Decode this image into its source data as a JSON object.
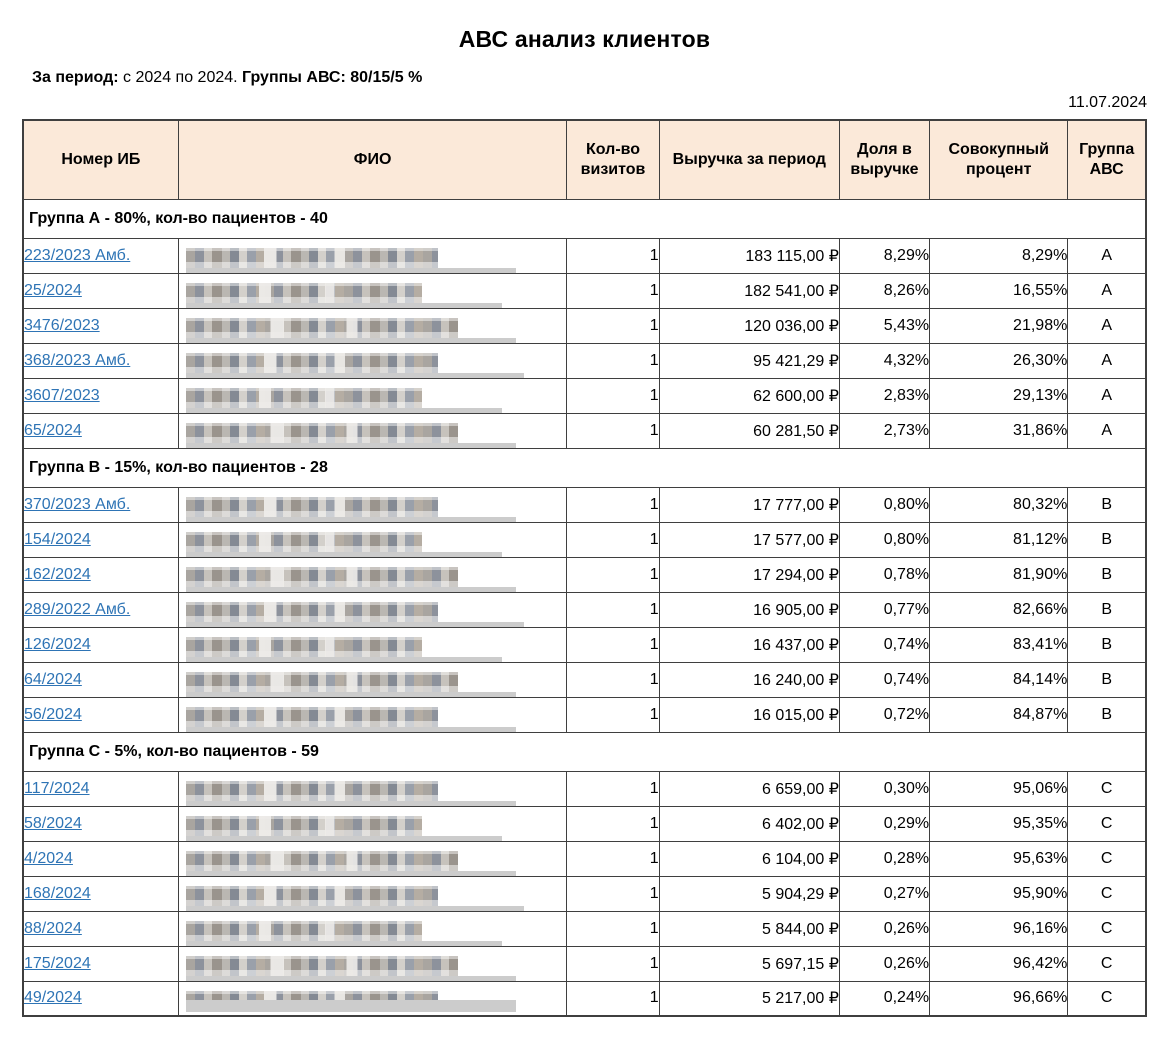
{
  "report": {
    "title": "АВС анализ клиентов",
    "period_label": "За период:",
    "period_value": "с 2024 по 2024.",
    "groups_label": "Группы АВС:",
    "groups_value": "80/15/5 %",
    "date": "11.07.2024"
  },
  "colors": {
    "header_background": "#fbe9d9",
    "table_border": "#3f3f3f",
    "link_blue": "#2e74b5",
    "redaction_bar": "#cccccc"
  },
  "table": {
    "columns": [
      "Номер ИБ",
      "ФИО",
      "Кол-во визитов",
      "Выручка за период",
      "Доля в выручке",
      "Совокупный процент",
      "Группа АВС"
    ],
    "groups": [
      {
        "header": "Группа А - 80%, кол-во пациентов - 40",
        "rows": [
          {
            "number": "223/2023 Амб.",
            "visits": "1",
            "revenue": "183 115,00 ₽",
            "share": "8,29%",
            "cumulative": "8,29%",
            "group": "A"
          },
          {
            "number": "25/2024",
            "visits": "1",
            "revenue": "182 541,00 ₽",
            "share": "8,26%",
            "cumulative": "16,55%",
            "group": "A"
          },
          {
            "number": "3476/2023",
            "visits": "1",
            "revenue": "120 036,00 ₽",
            "share": "5,43%",
            "cumulative": "21,98%",
            "group": "A"
          },
          {
            "number": "368/2023 Амб.",
            "visits": "1",
            "revenue": "95 421,29 ₽",
            "share": "4,32%",
            "cumulative": "26,30%",
            "group": "A"
          },
          {
            "number": "3607/2023",
            "visits": "1",
            "revenue": "62 600,00 ₽",
            "share": "2,83%",
            "cumulative": "29,13%",
            "group": "A"
          },
          {
            "number": "65/2024",
            "visits": "1",
            "revenue": "60 281,50 ₽",
            "share": "2,73%",
            "cumulative": "31,86%",
            "group": "A"
          }
        ]
      },
      {
        "header": "Группа В - 15%, кол-во пациентов - 28",
        "rows": [
          {
            "number": "370/2023 Амб.",
            "visits": "1",
            "revenue": "17 777,00 ₽",
            "share": "0,80%",
            "cumulative": "80,32%",
            "group": "B"
          },
          {
            "number": "154/2024",
            "visits": "1",
            "revenue": "17 577,00 ₽",
            "share": "0,80%",
            "cumulative": "81,12%",
            "group": "B"
          },
          {
            "number": "162/2024",
            "visits": "1",
            "revenue": "17 294,00 ₽",
            "share": "0,78%",
            "cumulative": "81,90%",
            "group": "B"
          },
          {
            "number": "289/2022 Амб.",
            "visits": "1",
            "revenue": "16 905,00 ₽",
            "share": "0,77%",
            "cumulative": "82,66%",
            "group": "B"
          },
          {
            "number": "126/2024",
            "visits": "1",
            "revenue": "16 437,00 ₽",
            "share": "0,74%",
            "cumulative": "83,41%",
            "group": "B"
          },
          {
            "number": "64/2024",
            "visits": "1",
            "revenue": "16 240,00 ₽",
            "share": "0,74%",
            "cumulative": "84,14%",
            "group": "B"
          },
          {
            "number": "56/2024",
            "visits": "1",
            "revenue": "16 015,00 ₽",
            "share": "0,72%",
            "cumulative": "84,87%",
            "group": "B"
          }
        ]
      },
      {
        "header": "Группа С - 5%, кол-во пациентов - 59",
        "rows": [
          {
            "number": "117/2024",
            "visits": "1",
            "revenue": "6 659,00 ₽",
            "share": "0,30%",
            "cumulative": "95,06%",
            "group": "C"
          },
          {
            "number": "58/2024",
            "visits": "1",
            "revenue": "6 402,00 ₽",
            "share": "0,29%",
            "cumulative": "95,35%",
            "group": "C"
          },
          {
            "number": "4/2024",
            "visits": "1",
            "revenue": "6 104,00 ₽",
            "share": "0,28%",
            "cumulative": "95,63%",
            "group": "C"
          },
          {
            "number": "168/2024",
            "visits": "1",
            "revenue": "5 904,29 ₽",
            "share": "0,27%",
            "cumulative": "95,90%",
            "group": "C"
          },
          {
            "number": "88/2024",
            "visits": "1",
            "revenue": "5 844,00 ₽",
            "share": "0,26%",
            "cumulative": "96,16%",
            "group": "C"
          },
          {
            "number": "175/2024",
            "visits": "1",
            "revenue": "5 697,15 ₽",
            "share": "0,26%",
            "cumulative": "96,42%",
            "group": "C"
          },
          {
            "number": "49/2024",
            "visits": "1",
            "revenue": "5 217,00 ₽",
            "share": "0,24%",
            "cumulative": "96,66%",
            "group": "C"
          }
        ]
      }
    ]
  }
}
